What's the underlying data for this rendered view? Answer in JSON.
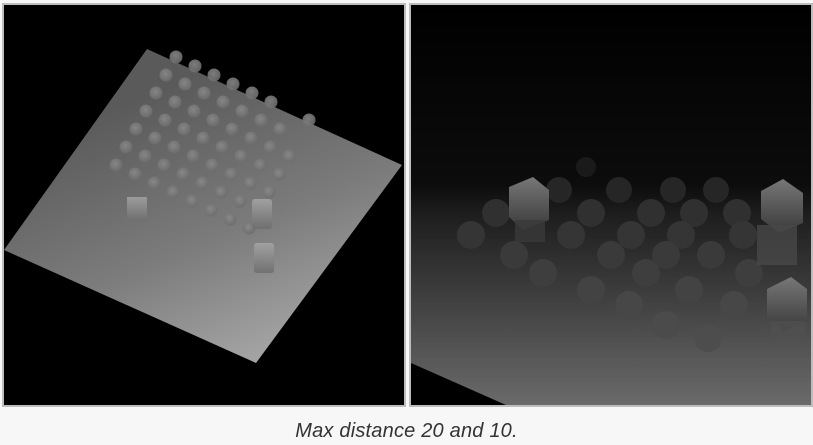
{
  "figure": {
    "caption": "Max distance 20 and 10."
  },
  "left_image": {
    "alt": "Depth render with max distance 20"
  },
  "right_image": {
    "alt": "Depth render with max distance 10"
  },
  "colors": {
    "page_background": "#f7f7f7",
    "image_border": "#bdbdbd",
    "caption_text": "#333333"
  }
}
